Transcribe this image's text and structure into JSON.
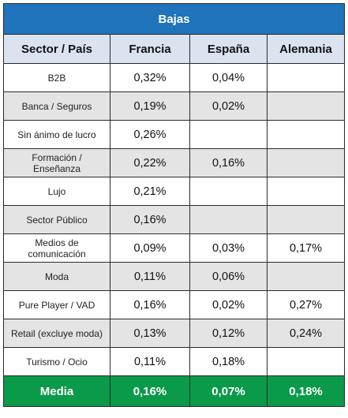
{
  "table": {
    "title": "Bajas",
    "headers": [
      "Sector / País",
      "Francia",
      "España",
      "Alemania"
    ],
    "rows": [
      {
        "sector": "B2B",
        "francia": "0,32%",
        "espana": "0,04%",
        "alemania": ""
      },
      {
        "sector": "Banca / Seguros",
        "francia": "0,19%",
        "espana": "0,02%",
        "alemania": ""
      },
      {
        "sector": "Sin ánimo de lucro",
        "francia": "0,26%",
        "espana": "",
        "alemania": ""
      },
      {
        "sector": "Formación / Enseñanza",
        "francia": "0,22%",
        "espana": "0,16%",
        "alemania": ""
      },
      {
        "sector": "Lujo",
        "francia": "0,21%",
        "espana": "",
        "alemania": ""
      },
      {
        "sector": "Sector Público",
        "francia": "0,16%",
        "espana": "",
        "alemania": ""
      },
      {
        "sector": "Medios de comunicación",
        "francia": "0,09%",
        "espana": "0,03%",
        "alemania": "0,17%"
      },
      {
        "sector": "Moda",
        "francia": "0,11%",
        "espana": "0,06%",
        "alemania": ""
      },
      {
        "sector": "Pure Player / VAD",
        "francia": "0,16%",
        "espana": "0,02%",
        "alemania": "0,27%"
      },
      {
        "sector": "Retail (excluye moda)",
        "francia": "0,13%",
        "espana": "0,12%",
        "alemania": "0,24%"
      },
      {
        "sector": "Turismo / Ocio",
        "francia": "0,11%",
        "espana": "0,18%",
        "alemania": ""
      }
    ],
    "footer": {
      "label": "Media",
      "francia": "0,16%",
      "espana": "0,07%",
      "alemania": "0,18%"
    },
    "colors": {
      "title_bg": "#1f74bb",
      "header_bg": "#dbe3f1",
      "shaded_row_bg": "#e4e4e4",
      "footer_bg": "#0a9a4a"
    }
  }
}
